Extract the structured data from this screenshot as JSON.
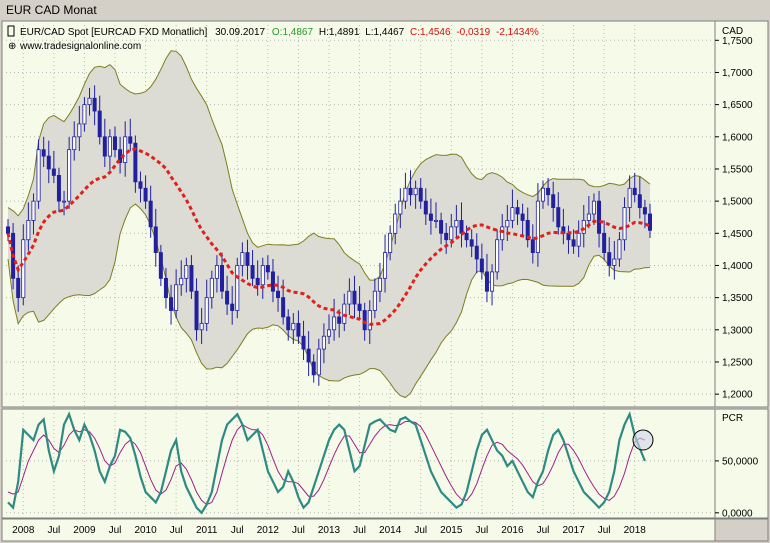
{
  "window": {
    "title": "EUR CAD Monat"
  },
  "header": {
    "instrument": "EUR/CAD Spot [EURCAD FXD  Monatlich]",
    "date": "30.09.2017",
    "open": "O:1,4867",
    "high": "H:1,4891",
    "low": "L:1,4467",
    "close": "C:1,4546",
    "change": "-0,0319",
    "change_pct": "-2,1434%",
    "website": "www.tradesignalonline.com",
    "colors": {
      "open": "#2a9a2a",
      "close": "#d01010",
      "text": "#000000"
    }
  },
  "price_axis": {
    "label": "CAD",
    "ticks": [
      "1,7500",
      "1,7000",
      "1,6500",
      "1,6000",
      "1,5500",
      "1,5000",
      "1,4500",
      "1,4000",
      "1,3500",
      "1,3000",
      "1,2500",
      "1,2000"
    ]
  },
  "pcr_panel": {
    "label": "PCR",
    "ticks": [
      "50,0000",
      "0,0000"
    ]
  },
  "x_axis": {
    "ticks": [
      "2008",
      "Jul",
      "2009",
      "Jul",
      "2010",
      "Jul",
      "2011",
      "Jul",
      "2012",
      "Jul",
      "2013",
      "Jul",
      "2014",
      "Jul",
      "2015",
      "Jul",
      "2016",
      "Jul",
      "2017",
      "Jul",
      "2018"
    ]
  },
  "colors": {
    "candle": "#2020a0",
    "band_fill": "#dcdcd4",
    "band_line": "#7d7d20",
    "ma": "#e0201a",
    "pcr": "#2e8a82",
    "pcr_signal": "#a0208a",
    "panel_bg": "#f6fae9"
  },
  "chart_data": [
    {
      "type": "candlestick",
      "title": "EUR/CAD Spot [EURCAD FXD  Monatlich]",
      "ylabel": "CAD",
      "ylim": [
        1.18,
        1.78
      ],
      "x_start": "2007-10",
      "x_end": "2017-09",
      "series": [
        {
          "name": "price",
          "values": [
            1.45,
            1.38,
            1.35,
            1.44,
            1.47,
            1.5,
            1.58,
            1.57,
            1.55,
            1.54,
            1.5,
            1.5,
            1.58,
            1.6,
            1.62,
            1.65,
            1.66,
            1.64,
            1.6,
            1.57,
            1.6,
            1.58,
            1.56,
            1.6,
            1.59,
            1.53,
            1.52,
            1.5,
            1.46,
            1.42,
            1.38,
            1.35,
            1.33,
            1.37,
            1.38,
            1.4,
            1.36,
            1.3,
            1.31,
            1.35,
            1.38,
            1.4,
            1.36,
            1.34,
            1.33,
            1.4,
            1.42,
            1.4,
            1.38,
            1.37,
            1.4,
            1.39,
            1.36,
            1.35,
            1.32,
            1.3,
            1.31,
            1.29,
            1.27,
            1.25,
            1.23,
            1.27,
            1.29,
            1.3,
            1.32,
            1.31,
            1.34,
            1.36,
            1.34,
            1.33,
            1.3,
            1.33,
            1.36,
            1.38,
            1.42,
            1.45,
            1.48,
            1.5,
            1.52,
            1.51,
            1.52,
            1.5,
            1.48,
            1.47,
            1.47,
            1.45,
            1.44,
            1.46,
            1.47,
            1.45,
            1.44,
            1.43,
            1.41,
            1.39,
            1.36,
            1.39,
            1.44,
            1.46,
            1.47,
            1.49,
            1.48,
            1.47,
            1.44,
            1.42,
            1.5,
            1.52,
            1.51,
            1.49,
            1.46,
            1.45,
            1.44,
            1.43,
            1.45,
            1.47,
            1.48,
            1.5,
            1.45,
            1.42,
            1.4,
            1.41,
            1.44,
            1.49,
            1.52,
            1.51,
            1.49,
            1.48,
            1.4546
          ]
        }
      ]
    },
    {
      "type": "line",
      "title": "",
      "ylabel": "PCR",
      "ylim": [
        -5,
        100
      ],
      "series": [
        {
          "name": "PCR",
          "values": [
            10,
            5,
            30,
            80,
            75,
            70,
            85,
            90,
            60,
            40,
            55,
            85,
            95,
            80,
            70,
            85,
            75,
            60,
            40,
            30,
            45,
            55,
            80,
            78,
            72,
            55,
            35,
            20,
            15,
            10,
            20,
            40,
            60,
            70,
            40,
            25,
            15,
            5,
            0,
            8,
            20,
            45,
            70,
            85,
            90,
            95,
            85,
            70,
            75,
            80,
            60,
            40,
            30,
            20,
            25,
            40,
            30,
            15,
            5,
            10,
            25,
            40,
            55,
            70,
            80,
            85,
            80,
            60,
            40,
            45,
            65,
            85,
            88,
            90,
            85,
            80,
            78,
            90,
            92,
            88,
            85,
            70,
            55,
            40,
            30,
            20,
            15,
            10,
            5,
            8,
            20,
            40,
            60,
            75,
            80,
            70,
            60,
            55,
            45,
            50,
            40,
            30,
            20,
            15,
            30,
            40,
            60,
            75,
            80,
            70,
            55,
            40,
            30,
            20,
            15,
            10,
            5,
            10,
            20,
            40,
            70,
            85,
            95,
            75,
            62,
            50
          ]
        },
        {
          "name": "PCR signal",
          "values": [
            20,
            18,
            20,
            35,
            50,
            60,
            70,
            75,
            70,
            62,
            58,
            65,
            75,
            80,
            78,
            80,
            78,
            72,
            62,
            50,
            45,
            48,
            58,
            66,
            70,
            66,
            58,
            45,
            32,
            22,
            18,
            22,
            32,
            45,
            48,
            42,
            32,
            20,
            12,
            8,
            10,
            20,
            38,
            55,
            70,
            80,
            85,
            82,
            80,
            80,
            75,
            65,
            52,
            40,
            32,
            30,
            30,
            28,
            22,
            16,
            16,
            22,
            32,
            44,
            56,
            66,
            74,
            74,
            66,
            58,
            58,
            66,
            74,
            80,
            84,
            85,
            84,
            85,
            88,
            88,
            87,
            83,
            75,
            65,
            55,
            45,
            35,
            26,
            18,
            13,
            12,
            18,
            28,
            42,
            55,
            65,
            68,
            66,
            60,
            56,
            52,
            46,
            38,
            30,
            26,
            28,
            36,
            46,
            58,
            66,
            66,
            60,
            52,
            42,
            33,
            25,
            18,
            14,
            12,
            16,
            25,
            38,
            55,
            68,
            72,
            70
          ]
        }
      ]
    }
  ]
}
